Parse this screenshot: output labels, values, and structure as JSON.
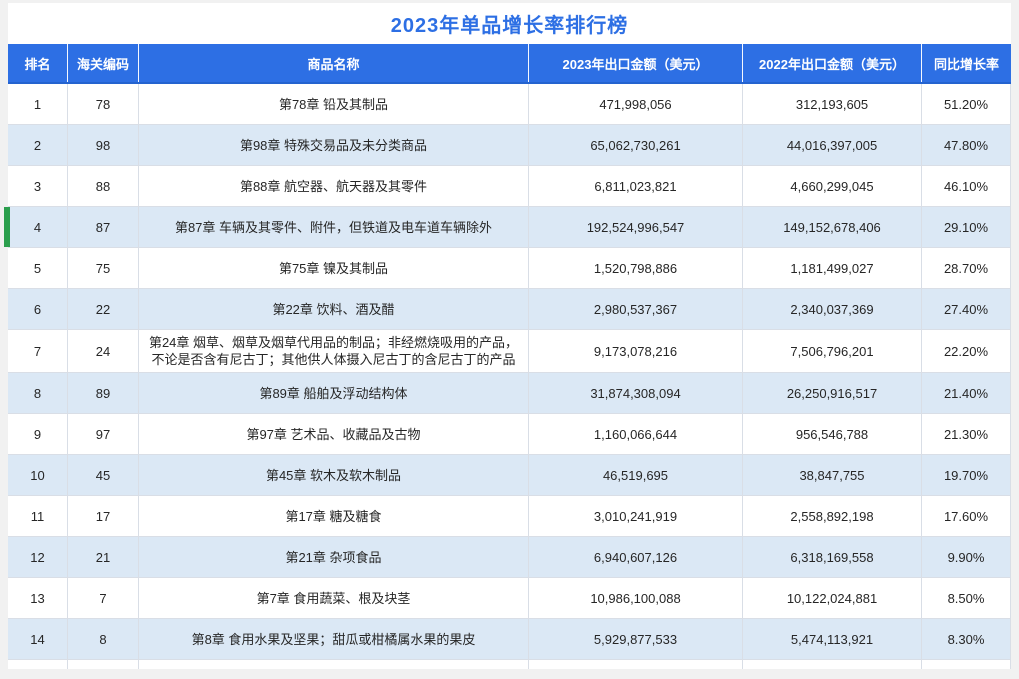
{
  "title": "2023年单品增长率排行榜",
  "colors": {
    "header_blue": "#2d6fe4",
    "title_blue": "#2d6fe4",
    "alt_row_blue": "#dbe8f5",
    "active_marker_green": "#2b9f4d",
    "body_text": "#262626"
  },
  "active_row_rank": 4,
  "table": {
    "columns": [
      {
        "key": "rank",
        "label": "排名"
      },
      {
        "key": "hs_code",
        "label": "海关编码"
      },
      {
        "key": "product_name",
        "label": "商品名称"
      },
      {
        "key": "export_2023",
        "label": "2023年出口金额（美元）"
      },
      {
        "key": "export_2022",
        "label": "2022年出口金额（美元）"
      },
      {
        "key": "yoy_growth",
        "label": "同比增长率"
      }
    ],
    "rows": [
      {
        "rank": "1",
        "hs_code": "78",
        "product_name": "第78章 铅及其制品",
        "export_2023": "471,998,056",
        "export_2022": "312,193,605",
        "yoy_growth": "51.20%"
      },
      {
        "rank": "2",
        "hs_code": "98",
        "product_name": "第98章 特殊交易品及未分类商品",
        "export_2023": "65,062,730,261",
        "export_2022": "44,016,397,005",
        "yoy_growth": "47.80%"
      },
      {
        "rank": "3",
        "hs_code": "88",
        "product_name": "第88章 航空器、航天器及其零件",
        "export_2023": "6,811,023,821",
        "export_2022": "4,660,299,045",
        "yoy_growth": "46.10%"
      },
      {
        "rank": "4",
        "hs_code": "87",
        "product_name": "第87章 车辆及其零件、附件，但铁道及电车道车辆除外",
        "export_2023": "192,524,996,547",
        "export_2022": "149,152,678,406",
        "yoy_growth": "29.10%"
      },
      {
        "rank": "5",
        "hs_code": "75",
        "product_name": "第75章 镍及其制品",
        "export_2023": "1,520,798,886",
        "export_2022": "1,181,499,027",
        "yoy_growth": "28.70%"
      },
      {
        "rank": "6",
        "hs_code": "22",
        "product_name": "第22章 饮料、酒及醋",
        "export_2023": "2,980,537,367",
        "export_2022": "2,340,037,369",
        "yoy_growth": "27.40%"
      },
      {
        "rank": "7",
        "hs_code": "24",
        "product_name": "第24章 烟草、烟草及烟草代用品的制品；非经燃烧吸用的产品，不论是否含有尼古丁；其他供人体摄入尼古丁的含尼古丁的产品",
        "export_2023": "9,173,078,216",
        "export_2022": "7,506,796,201",
        "yoy_growth": "22.20%"
      },
      {
        "rank": "8",
        "hs_code": "89",
        "product_name": "第89章 船舶及浮动结构体",
        "export_2023": "31,874,308,094",
        "export_2022": "26,250,916,517",
        "yoy_growth": "21.40%"
      },
      {
        "rank": "9",
        "hs_code": "97",
        "product_name": "第97章 艺术品、收藏品及古物",
        "export_2023": "1,160,066,644",
        "export_2022": "956,546,788",
        "yoy_growth": "21.30%"
      },
      {
        "rank": "10",
        "hs_code": "45",
        "product_name": "第45章 软木及软木制品",
        "export_2023": "46,519,695",
        "export_2022": "38,847,755",
        "yoy_growth": "19.70%"
      },
      {
        "rank": "11",
        "hs_code": "17",
        "product_name": "第17章 糖及糖食",
        "export_2023": "3,010,241,919",
        "export_2022": "2,558,892,198",
        "yoy_growth": "17.60%"
      },
      {
        "rank": "12",
        "hs_code": "21",
        "product_name": "第21章 杂项食品",
        "export_2023": "6,940,607,126",
        "export_2022": "6,318,169,558",
        "yoy_growth": "9.90%"
      },
      {
        "rank": "13",
        "hs_code": "7",
        "product_name": "第7章 食用蔬菜、根及块茎",
        "export_2023": "10,986,100,088",
        "export_2022": "10,122,024,881",
        "yoy_growth": "8.50%"
      },
      {
        "rank": "14",
        "hs_code": "8",
        "product_name": "第8章 食用水果及坚果；甜瓜或柑橘属水果的果皮",
        "export_2023": "5,929,877,533",
        "export_2022": "5,474,113,921",
        "yoy_growth": "8.30%"
      }
    ]
  }
}
